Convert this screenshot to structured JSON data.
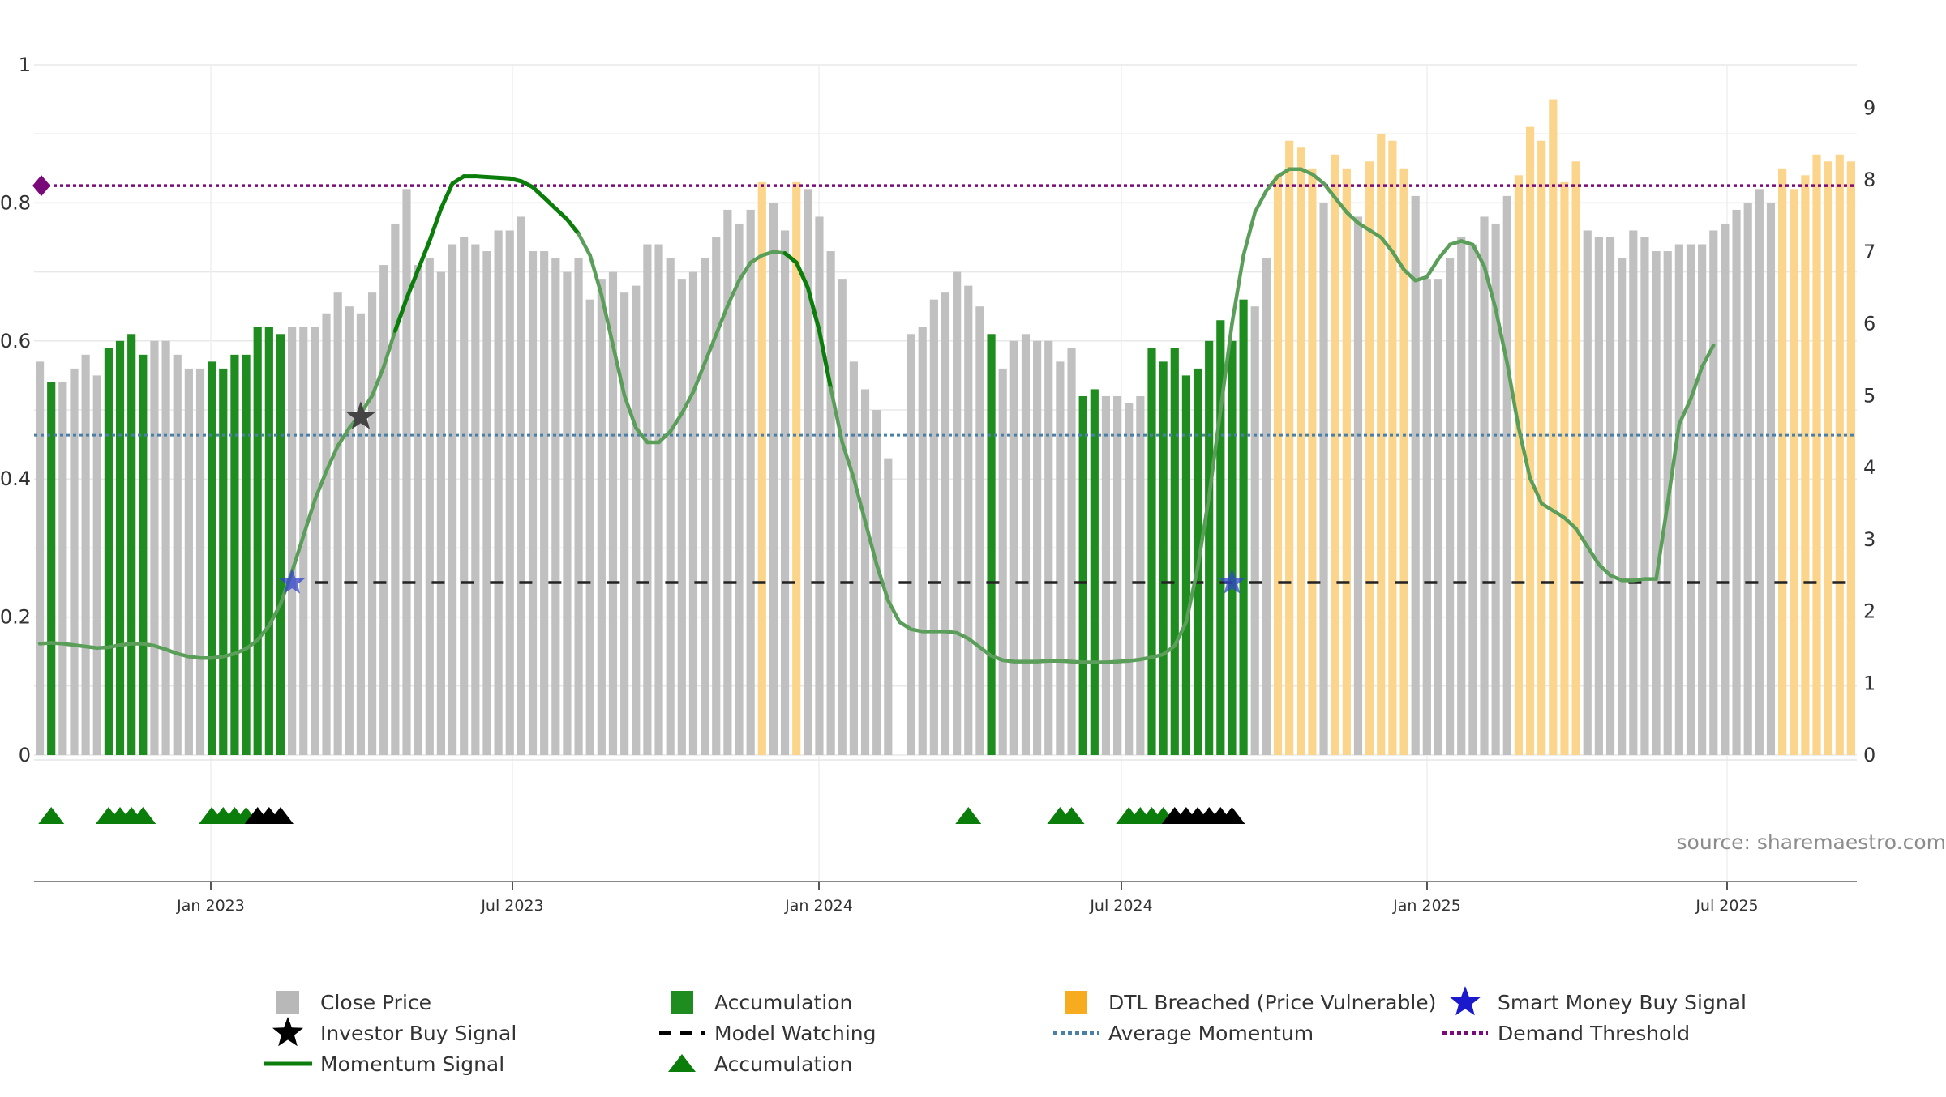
{
  "source_text": "source: sharemaestro.com",
  "chart_data": {
    "type": "bar",
    "left_axis": {
      "ticks": [
        "0",
        "0.2",
        "0.4",
        "0.6",
        "0.8",
        "1"
      ],
      "range": [
        0,
        1
      ]
    },
    "right_axis": {
      "ticks": [
        "0",
        "1",
        "2",
        "3",
        "4",
        "5",
        "6",
        "7",
        "8",
        "9"
      ],
      "range": [
        0,
        9.6
      ]
    },
    "x_axis": {
      "ticks": [
        "Jan 2023",
        "Jul 2023",
        "Jan 2024",
        "Jul 2024",
        "Jan 2025",
        "Jul 2025"
      ]
    },
    "grid": true,
    "colors": {
      "close": "#c0c0c0",
      "accumulation": "#1e8c1e",
      "dtl": "#fcd58c",
      "momentum": "#0a7d0a",
      "momentum_fade": "#5a9e5a",
      "average": "#4a80a8",
      "demand": "#7a0a7a",
      "model": "#222222",
      "smart": "#3344cc",
      "investor": "#444444"
    },
    "bar_categories_note": "weekly",
    "bars": {
      "values": [
        0.57,
        0.54,
        0.54,
        0.56,
        0.58,
        0.55,
        0.59,
        0.6,
        0.61,
        0.58,
        0.6,
        0.6,
        0.58,
        0.56,
        0.56,
        0.57,
        0.56,
        0.58,
        0.58,
        0.62,
        0.62,
        0.61,
        0.62,
        0.62,
        0.62,
        0.64,
        0.67,
        0.65,
        0.64,
        0.67,
        0.71,
        0.77,
        0.82,
        0.71,
        0.72,
        0.7,
        0.74,
        0.75,
        0.74,
        0.73,
        0.76,
        0.76,
        0.78,
        0.73,
        0.73,
        0.72,
        0.7,
        0.72,
        0.66,
        0.69,
        0.7,
        0.67,
        0.68,
        0.74,
        0.74,
        0.72,
        0.69,
        0.7,
        0.72,
        0.75,
        0.79,
        0.77,
        0.79,
        0.83,
        0.8,
        0.76,
        0.83,
        0.82,
        0.78,
        0.73,
        0.69,
        0.57,
        0.53,
        0.5,
        0.43,
        0.0,
        0.61,
        0.62,
        0.66,
        0.67,
        0.7,
        0.68,
        0.65,
        0.61,
        0.56,
        0.6,
        0.61,
        0.6,
        0.6,
        0.57,
        0.59,
        0.52,
        0.53,
        0.52,
        0.52,
        0.51,
        0.52,
        0.59,
        0.57,
        0.59,
        0.55,
        0.56,
        0.6,
        0.63,
        0.6,
        0.66,
        0.65,
        0.72,
        0.84,
        0.89,
        0.88,
        0.85,
        0.8,
        0.87,
        0.85,
        0.78,
        0.86,
        0.9,
        0.89,
        0.85,
        0.81,
        0.69,
        0.69,
        0.72,
        0.75,
        0.74,
        0.78,
        0.77,
        0.81,
        0.84,
        0.91,
        0.89,
        0.95,
        0.83,
        0.86,
        0.76,
        0.75,
        0.75,
        0.72,
        0.76,
        0.75,
        0.73,
        0.73,
        0.74,
        0.74,
        0.74,
        0.76,
        0.77,
        0.79,
        0.8,
        0.82,
        0.8,
        0.85,
        0.82,
        0.84,
        0.87,
        0.86,
        0.87,
        0.86
      ],
      "colors": [
        "c",
        "a",
        "c",
        "c",
        "c",
        "c",
        "a",
        "a",
        "a",
        "a",
        "c",
        "c",
        "c",
        "c",
        "c",
        "a",
        "a",
        "a",
        "a",
        "a",
        "a",
        "a",
        "c",
        "c",
        "c",
        "c",
        "c",
        "c",
        "c",
        "c",
        "c",
        "c",
        "c",
        "c",
        "c",
        "c",
        "c",
        "c",
        "c",
        "c",
        "c",
        "c",
        "c",
        "c",
        "c",
        "c",
        "c",
        "c",
        "c",
        "c",
        "c",
        "c",
        "c",
        "c",
        "c",
        "c",
        "c",
        "c",
        "c",
        "c",
        "c",
        "c",
        "c",
        "d",
        "c",
        "c",
        "d",
        "c",
        "c",
        "c",
        "c",
        "c",
        "c",
        "c",
        "c",
        "c",
        "c",
        "c",
        "c",
        "c",
        "c",
        "c",
        "c",
        "a",
        "c",
        "c",
        "c",
        "c",
        "c",
        "c",
        "c",
        "a",
        "a",
        "c",
        "c",
        "c",
        "c",
        "a",
        "a",
        "a",
        "a",
        "a",
        "a",
        "a",
        "a",
        "a",
        "c",
        "c",
        "d",
        "d",
        "d",
        "d",
        "c",
        "d",
        "d",
        "c",
        "d",
        "d",
        "d",
        "d",
        "c",
        "c",
        "c",
        "c",
        "c",
        "c",
        "c",
        "c",
        "c",
        "d",
        "d",
        "d",
        "d",
        "d",
        "d",
        "c",
        "c",
        "c",
        "c",
        "c",
        "c",
        "c",
        "c",
        "c",
        "c",
        "c",
        "c",
        "c",
        "c",
        "c",
        "c",
        "c",
        "d",
        "d",
        "d",
        "d",
        "d",
        "d",
        "d"
      ]
    },
    "momentum": {
      "y": [
        1.55,
        1.56,
        1.55,
        1.53,
        1.51,
        1.49,
        1.5,
        1.53,
        1.55,
        1.55,
        1.52,
        1.47,
        1.41,
        1.37,
        1.35,
        1.35,
        1.37,
        1.41,
        1.48,
        1.6,
        1.8,
        2.1,
        2.55,
        3.05,
        3.55,
        3.95,
        4.3,
        4.55,
        4.75,
        5.0,
        5.4,
        5.9,
        6.35,
        6.75,
        7.15,
        7.6,
        7.95,
        8.05,
        8.05,
        8.04,
        8.03,
        8.02,
        7.98,
        7.9,
        7.75,
        7.6,
        7.45,
        7.25,
        6.95,
        6.4,
        5.7,
        5.0,
        4.55,
        4.35,
        4.35,
        4.5,
        4.75,
        5.05,
        5.45,
        5.85,
        6.25,
        6.6,
        6.85,
        6.95,
        7.0,
        6.98,
        6.85,
        6.5,
        5.9,
        5.1,
        4.35,
        3.85,
        3.25,
        2.65,
        2.15,
        1.85,
        1.75,
        1.72,
        1.72,
        1.72,
        1.7,
        1.62,
        1.5,
        1.38,
        1.32,
        1.3,
        1.3,
        1.3,
        1.31,
        1.31,
        1.3,
        1.29,
        1.29,
        1.29,
        1.3,
        1.31,
        1.33,
        1.36,
        1.4,
        1.52,
        1.85,
        2.6,
        3.6,
        4.8,
        6.0,
        6.95,
        7.55,
        7.85,
        8.05,
        8.15,
        8.15,
        8.08,
        7.95,
        7.75,
        7.55,
        7.4,
        7.3,
        7.2,
        7.0,
        6.75,
        6.6,
        6.65,
        6.9,
        7.1,
        7.15,
        7.1,
        6.8,
        6.2,
        5.45,
        4.55,
        3.85,
        3.5,
        3.4,
        3.3,
        3.15,
        2.9,
        2.65,
        2.5,
        2.43,
        2.43,
        2.45,
        2.45,
        3.5,
        4.6,
        4.95,
        5.4,
        5.7
      ],
      "faded": [
        true,
        true,
        true,
        true,
        true,
        true,
        true,
        true,
        true,
        true,
        true,
        true,
        true,
        true,
        true,
        true,
        true,
        true,
        true,
        true,
        true,
        true,
        true,
        true,
        true,
        true,
        true,
        true,
        true,
        true,
        true,
        false,
        false,
        false,
        false,
        false,
        false,
        false,
        false,
        false,
        false,
        false,
        false,
        false,
        false,
        false,
        false,
        true,
        true,
        true,
        true,
        true,
        true,
        true,
        true,
        true,
        true,
        true,
        true,
        true,
        true,
        true,
        true,
        true,
        true,
        false,
        false,
        false,
        false,
        true,
        true,
        true,
        true,
        true,
        true,
        true,
        true,
        true,
        true,
        true,
        true,
        true,
        true,
        true,
        true,
        true,
        true,
        true,
        true,
        true,
        true,
        true,
        true,
        true,
        true,
        true,
        true,
        true,
        true,
        true,
        true,
        true,
        true,
        true,
        true,
        true,
        true,
        true,
        true,
        true,
        true,
        true,
        true,
        true,
        true,
        true,
        true,
        true,
        true,
        true,
        true,
        true,
        true,
        true,
        true,
        true,
        true,
        true,
        true,
        true,
        true,
        true,
        true,
        true,
        true,
        true,
        true,
        true,
        true,
        true,
        true,
        true,
        true,
        true,
        true,
        true,
        true,
        true,
        true,
        true,
        true,
        true
      ]
    },
    "average_momentum": 4.45,
    "demand_threshold": 0.825,
    "model_watching": {
      "level": 2.4,
      "from_index": 24
    },
    "smart_money_signals": [
      22,
      104
    ],
    "investor_signals": [
      28
    ],
    "triangles": {
      "green": [
        1,
        6,
        7,
        8,
        9,
        15,
        16,
        17,
        18,
        81,
        89,
        90,
        95,
        96,
        97,
        98
      ],
      "black": [
        19,
        20,
        21,
        99,
        100,
        101,
        102,
        103,
        104
      ]
    },
    "legend": [
      {
        "label": "Close Price",
        "type": "square",
        "color": "#b8b8b8"
      },
      {
        "label": "Accumulation",
        "type": "square",
        "color": "#1e8c1e"
      },
      {
        "label": "DTL Breached (Price Vulnerable)",
        "type": "square",
        "color": "#f7ab1e"
      },
      {
        "label": "Smart Money Buy Signal",
        "type": "star",
        "color": "#1a1acc"
      },
      {
        "label": "Investor Buy Signal",
        "type": "star",
        "color": "#000000"
      },
      {
        "label": "Model Watching",
        "type": "dash",
        "color": "#000000"
      },
      {
        "label": "Average Momentum",
        "type": "dot-blue",
        "color": "#4a80a8"
      },
      {
        "label": "Demand Threshold",
        "type": "dot-purple",
        "color": "#7a0a7a"
      },
      {
        "label": "Momentum Signal",
        "type": "line",
        "color": "#0a7d0a"
      },
      {
        "label": "Accumulation",
        "type": "triangle",
        "color": "#0a7d0a"
      }
    ]
  }
}
